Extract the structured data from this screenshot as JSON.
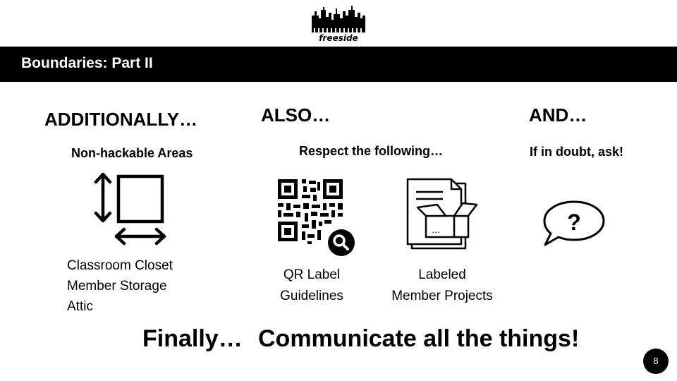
{
  "logo": {
    "text": "freeside"
  },
  "header": {
    "title": "Boundaries: Part II"
  },
  "columns": [
    {
      "heading": "ADDITIONALLY…",
      "subheading": "Non-hackable Areas",
      "icon": "boundary-arrows-icon",
      "items": [
        "Classroom Closet",
        "Member Storage",
        "Attic"
      ]
    },
    {
      "heading": "ALSO…",
      "subheading": "Respect the following…",
      "cards": [
        {
          "icon": "qr-code-icon",
          "caption_line1": "QR Label",
          "caption_line2": "Guidelines"
        },
        {
          "icon": "labeled-box-icon",
          "caption_line1": "Labeled",
          "caption_line2": "Member Projects"
        }
      ]
    },
    {
      "heading": "AND…",
      "subheading": "If in doubt, ask!",
      "icon": "question-bubble-icon"
    }
  ],
  "footer": {
    "finally": "Finally…",
    "message": "Communicate all the things!"
  },
  "page_number": "8"
}
